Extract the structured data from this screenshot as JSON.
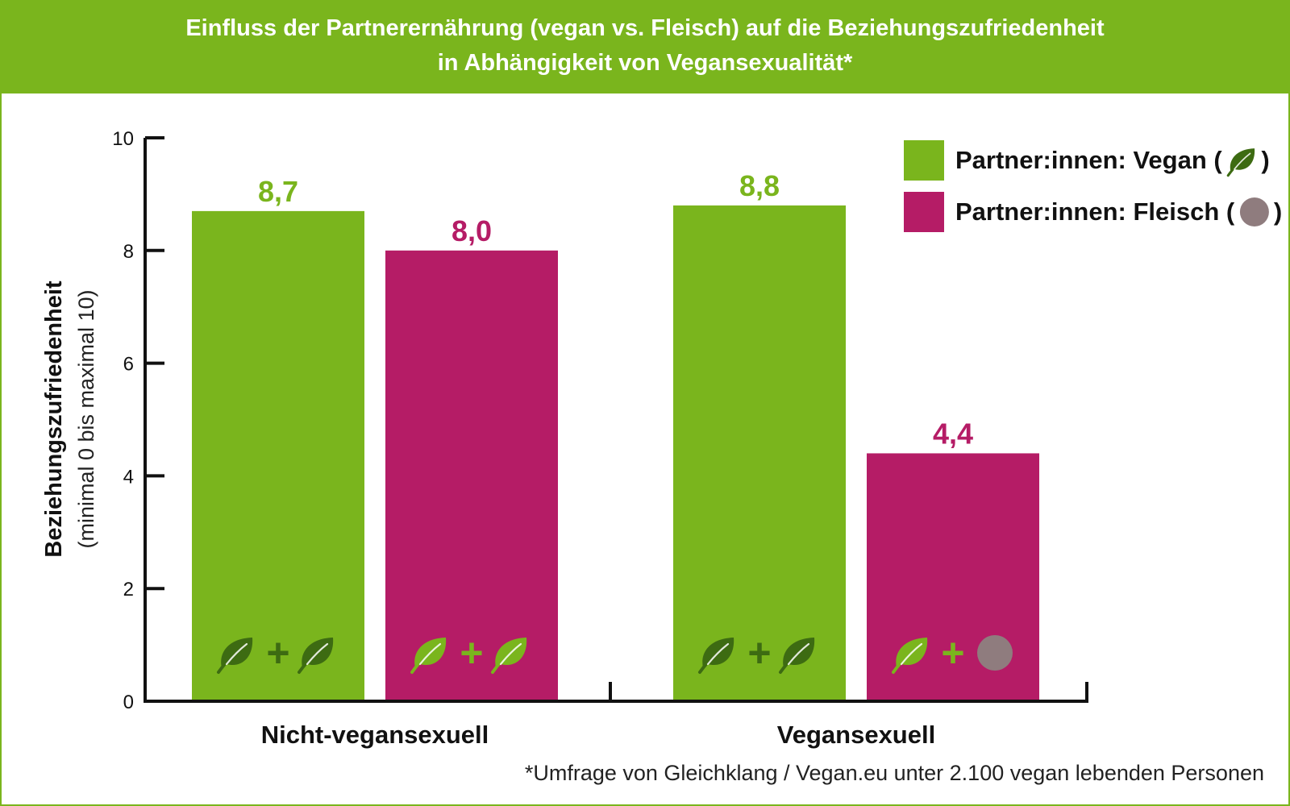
{
  "header": {
    "title_line1": "Einfluss der Partnerernährung (vegan vs. Fleisch) auf die Beziehungszufriedenheit",
    "title_line2": "in Abhängigkeit von Vegansexualität*"
  },
  "footnote": "*Umfrage von Gleichklang / Vegan.eu unter 2.100 vegan lebenden Personen",
  "colors": {
    "green": "#7ab51d",
    "magenta": "#b51c66",
    "leaf_dark": "#3d6b12",
    "circle_grey": "#8f7c7e",
    "axis": "#111111"
  },
  "chart_data": {
    "type": "bar",
    "categories": [
      "Nicht-vegansexuell",
      "Vegansexuell"
    ],
    "series": [
      {
        "name": "Partner:innen: Vegan (",
        "values": [
          8.7,
          8.8
        ],
        "labels": [
          "8,7",
          "8,8"
        ],
        "color": "#7ab51d",
        "icons": [
          "leaf",
          "leaf"
        ]
      },
      {
        "name": "Partner:innen: Fleisch (",
        "values": [
          8.0,
          4.4
        ],
        "labels": [
          "8,0",
          "4,4"
        ],
        "color": "#b51c66",
        "icons": [
          "leaf",
          "circle"
        ]
      }
    ],
    "ylabel": "Beziehungszufriedenheit",
    "ylabel_sub": "(minimal 0 bis maximal 10)",
    "ylim": [
      0,
      10
    ],
    "yticks": [
      "0",
      "2",
      "4",
      "6",
      "8",
      "10"
    ],
    "legend_position": "top-right",
    "legend_suffix": ")",
    "bar_icon_plus": "+",
    "grid": false
  }
}
